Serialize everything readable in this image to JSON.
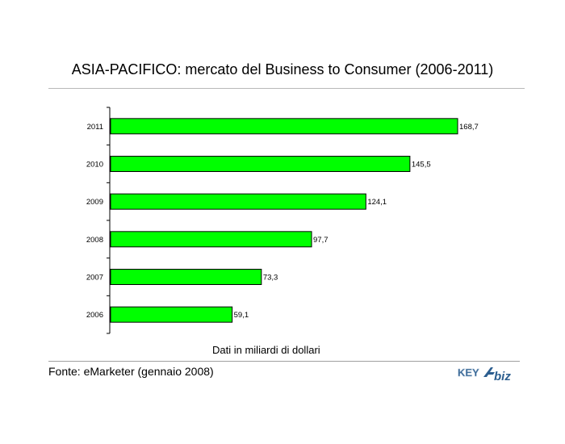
{
  "chart_data": {
    "type": "bar",
    "orientation": "horizontal",
    "title": "ASIA-PACIFICO: mercato del Business to Consumer (2006-2011)",
    "xlabel": "Dati in miliardi di dollari",
    "ylabel": "",
    "categories": [
      "2011",
      "2010",
      "2009",
      "2008",
      "2007",
      "2006"
    ],
    "values": [
      168.7,
      145.5,
      124.1,
      97.7,
      73.3,
      59.1
    ],
    "data_labels": [
      "168,7",
      "145,5",
      "124,1",
      "97,7",
      "73,3",
      "59,1"
    ],
    "xlim": [
      0,
      168.7
    ],
    "bar_color": "#00ff00",
    "bar_edge_color": "#000000",
    "grid": false,
    "legend": "none"
  },
  "source": "Fonte: eMarketer (gennaio 2008)",
  "logo": {
    "brand_left": "KEY",
    "brand_right": "biz",
    "brand_color": "#2c5e8f"
  }
}
